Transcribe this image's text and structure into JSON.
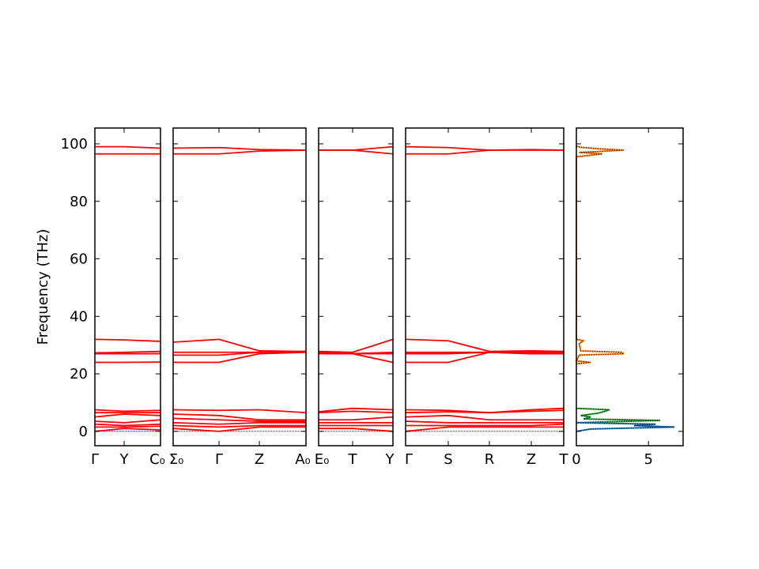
{
  "chart_data": {
    "type": "line",
    "ylabel": "Frequency (THz)",
    "ylim": [
      -5,
      105.5
    ],
    "yticks": [
      "0",
      "20",
      "40",
      "60",
      "80",
      "100"
    ],
    "band_color": "#ff0000",
    "zero_line_color": "#0000ff",
    "panels": [
      {
        "kpoints": [
          "Γ",
          "Y",
          "C₀"
        ],
        "bands": [
          [
            99,
            99,
            98.5
          ],
          [
            96.5,
            96.5,
            96.5
          ],
          [
            32,
            31.8,
            31.3
          ],
          [
            27.3,
            27.5,
            27.8
          ],
          [
            27,
            27,
            27
          ],
          [
            24,
            24,
            24.1
          ],
          [
            7.5,
            7,
            7.3
          ],
          [
            6.5,
            6.5,
            6.5
          ],
          [
            5,
            6,
            5.5
          ],
          [
            3.5,
            3,
            4
          ],
          [
            2.5,
            2,
            2.5
          ],
          [
            1.5,
            1.5,
            1.8
          ],
          [
            0,
            1,
            0.5
          ]
        ]
      },
      {
        "kpoints": [
          "Σ₀",
          "Γ",
          "Z",
          "A₀"
        ],
        "bands": [
          [
            98.5,
            98.7,
            98,
            97.8
          ],
          [
            96.5,
            96.5,
            97.5,
            97.8
          ],
          [
            31,
            32,
            28,
            27.8
          ],
          [
            27.5,
            27.5,
            27.5,
            27.5
          ],
          [
            26.5,
            26.5,
            27.5,
            27.8
          ],
          [
            24,
            24,
            27,
            27.5
          ],
          [
            7.5,
            7.3,
            7.5,
            6.5
          ],
          [
            6,
            5.5,
            4,
            4
          ],
          [
            4.5,
            4,
            3.5,
            3.5
          ],
          [
            3,
            2.5,
            3,
            3
          ],
          [
            2,
            1.5,
            2,
            2
          ],
          [
            1,
            0,
            1.5,
            1.5
          ]
        ]
      },
      {
        "kpoints": [
          "E₀",
          "T",
          "Y"
        ],
        "bands": [
          [
            97.8,
            97.8,
            99
          ],
          [
            97.8,
            97.8,
            96.5
          ],
          [
            27.8,
            27.5,
            32
          ],
          [
            27.5,
            27,
            27.5
          ],
          [
            27.3,
            27,
            27
          ],
          [
            27,
            27,
            24
          ],
          [
            6.8,
            8,
            7.5
          ],
          [
            6.5,
            7,
            6.5
          ],
          [
            4,
            4,
            5
          ],
          [
            3,
            3,
            3
          ],
          [
            2,
            2,
            2
          ],
          [
            1,
            1,
            0
          ]
        ]
      },
      {
        "kpoints": [
          "Γ",
          "S",
          "R",
          "Z",
          "T"
        ],
        "bands": [
          [
            99,
            98.7,
            97.8,
            98,
            97.8
          ],
          [
            96.5,
            96.5,
            97.8,
            97.8,
            97.8
          ],
          [
            32,
            31.5,
            27.8,
            28,
            27.8
          ],
          [
            27.5,
            27.5,
            27.5,
            27.5,
            27.5
          ],
          [
            27,
            27,
            27.5,
            27,
            27
          ],
          [
            24,
            24,
            27.5,
            27,
            27
          ],
          [
            7.5,
            7.3,
            6.5,
            7.5,
            8
          ],
          [
            6.5,
            6.8,
            6.5,
            7,
            7.3
          ],
          [
            5,
            5.5,
            4,
            4,
            4
          ],
          [
            3.5,
            3,
            3,
            3,
            3
          ],
          [
            2,
            2,
            2,
            2,
            2.5
          ],
          [
            0,
            1.5,
            1.5,
            1.5,
            1.5
          ]
        ]
      }
    ],
    "dos": {
      "xlim": [
        0,
        7.4
      ],
      "xticks": [
        "0",
        "5"
      ],
      "series": [
        {
          "color": "#ff7f0e",
          "points": [
            [
              95.5,
              0
            ],
            [
              96.5,
              1.8
            ],
            [
              97,
              0.2
            ],
            [
              97.8,
              3.3
            ],
            [
              98.3,
              1.5
            ],
            [
              98.8,
              0.3
            ],
            [
              99.2,
              0
            ],
            [
              23.5,
              0
            ],
            [
              24,
              1
            ],
            [
              24.5,
              0
            ],
            [
              26.5,
              0.2
            ],
            [
              27,
              3.3
            ],
            [
              27.5,
              3.1
            ],
            [
              28,
              0.3
            ],
            [
              30.5,
              0.2
            ],
            [
              31.5,
              0.5
            ],
            [
              32,
              0
            ]
          ]
        },
        {
          "color": "#2ca02c",
          "points": [
            [
              3,
              0
            ],
            [
              3.8,
              5.8
            ],
            [
              4.3,
              0.5
            ],
            [
              5,
              1
            ],
            [
              5.5,
              0.3
            ],
            [
              6.3,
              1.5
            ],
            [
              7,
              2
            ],
            [
              7.5,
              2.3
            ],
            [
              8,
              0
            ]
          ]
        },
        {
          "color": "#1f77b4",
          "points": [
            [
              0,
              0
            ],
            [
              0.8,
              1
            ],
            [
              1.5,
              6.8
            ],
            [
              2,
              4
            ],
            [
              2.5,
              5.5
            ],
            [
              3,
              0
            ]
          ]
        }
      ]
    }
  }
}
